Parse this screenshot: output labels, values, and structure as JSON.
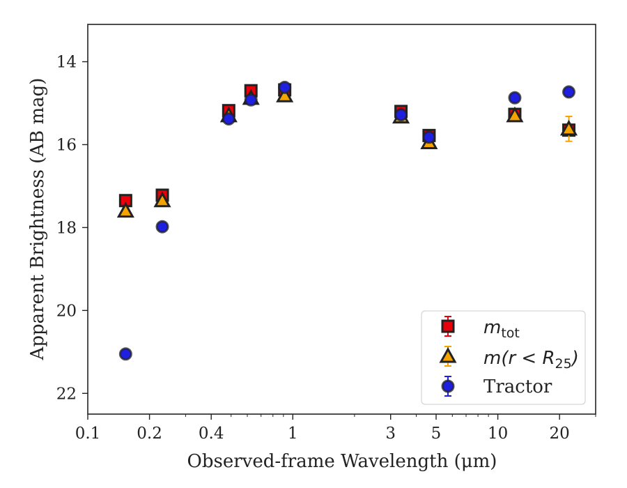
{
  "chart_data": {
    "type": "scatter",
    "xlabel": "Observed-frame Wavelength (μm)",
    "ylabel": "Apparent Brightness (AB mag)",
    "xscale": "log",
    "xlim": [
      0.1,
      30
    ],
    "ylim": [
      22.5,
      13.1
    ],
    "y_inverted": true,
    "x_ticks": [
      0.1,
      0.2,
      0.4,
      1,
      3,
      5,
      10,
      20
    ],
    "x_tick_labels": [
      "0.1",
      "0.2",
      "0.4",
      "1",
      "3",
      "5",
      "10",
      "20"
    ],
    "y_ticks": [
      14,
      16,
      18,
      20,
      22
    ],
    "y_tick_labels": [
      "14",
      "16",
      "18",
      "20",
      "22"
    ],
    "grid": false,
    "legend": {
      "placement": "bottom-right"
    },
    "series": [
      {
        "name": "m_tot",
        "marker": "square",
        "face_color": "#e8000b",
        "edge_color": "#222222",
        "x": [
          0.153,
          0.231,
          0.487,
          0.625,
          0.913,
          3.37,
          4.62,
          12.1,
          22.2
        ],
        "y": [
          17.35,
          17.22,
          15.18,
          14.7,
          14.68,
          15.2,
          15.78,
          15.27,
          15.65
        ],
        "yerr": [
          0.05,
          0.05,
          0.05,
          0.05,
          0.05,
          0.05,
          0.05,
          0.05,
          0.1
        ]
      },
      {
        "name": "m(r<R_25)",
        "marker": "triangle",
        "face_color": "#f4a300",
        "edge_color": "#222222",
        "x": [
          0.153,
          0.231,
          0.487,
          0.625,
          0.913,
          3.37,
          4.62,
          12.1,
          22.2
        ],
        "y": [
          17.6,
          17.35,
          15.3,
          14.88,
          14.82,
          15.33,
          15.95,
          15.3,
          15.62
        ],
        "yerr": [
          0.05,
          0.05,
          0.05,
          0.05,
          0.05,
          0.05,
          0.05,
          0.05,
          0.3
        ]
      },
      {
        "name": "Tractor",
        "marker": "circle",
        "face_color": "#1f1fe0",
        "edge_color": "#222222",
        "x": [
          0.153,
          0.231,
          0.487,
          0.625,
          0.913,
          3.37,
          4.62,
          12.1,
          22.2
        ],
        "y": [
          21.05,
          17.98,
          15.38,
          14.92,
          14.62,
          15.28,
          15.82,
          14.87,
          14.73
        ],
        "yerr": [
          0.05,
          0.05,
          0.05,
          0.05,
          0.05,
          0.05,
          0.05,
          0.05,
          0.05
        ]
      }
    ],
    "legend_labels": {
      "mtot_main": "m",
      "mtot_sub": "tot",
      "mr_main": "m(r < R",
      "mr_sub": "25",
      "mr_close": ")",
      "tractor": "Tractor"
    }
  }
}
